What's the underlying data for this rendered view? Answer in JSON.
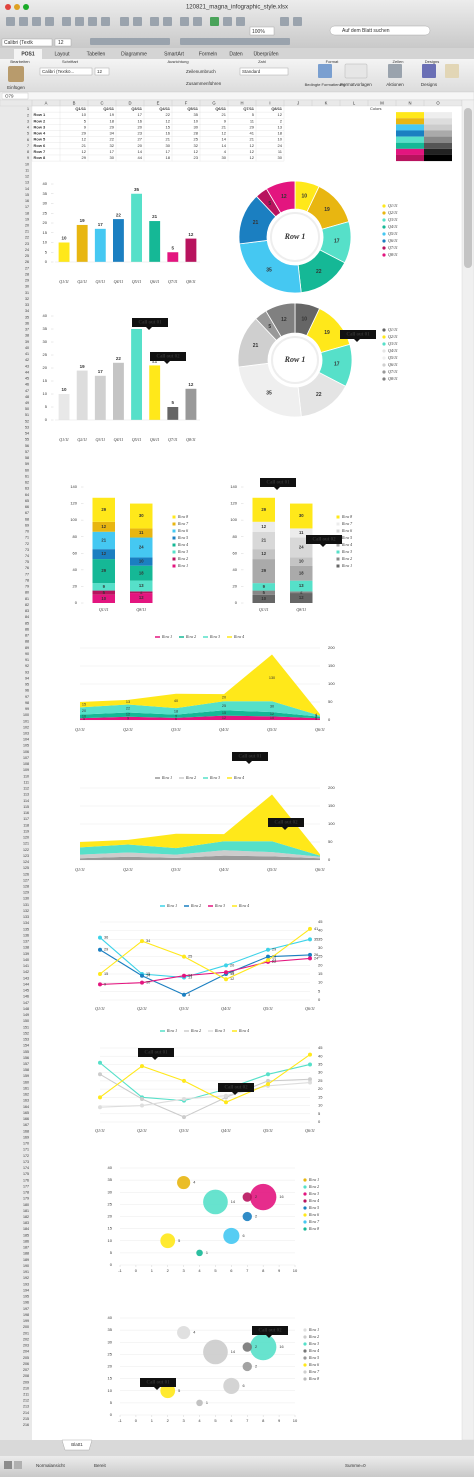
{
  "window": {
    "title": "120821_magna_infographic_style.xlsx",
    "search": "Auf dem Blatt suchen",
    "zoom": "100%",
    "font": "Calibri (Textk",
    "font_size": "12"
  },
  "ribbon": {
    "tabs": [
      "POS1",
      "Layout",
      "Tabellen",
      "Diagramme",
      "SmartArt",
      "Formeln",
      "Daten",
      "Überprüfen"
    ],
    "groups": [
      "Bearbeiten",
      "Schriftart",
      "Ausrichtung",
      "Zahl",
      "Format",
      "Zellen",
      "Designs"
    ],
    "paste": "Einfügen",
    "font": "Calibri (Textkö...",
    "font_size": "12",
    "wrap": "Zeilenumbruch",
    "merge": "Zusammenführen",
    "number_format": "Standard",
    "conditional": "Bedingte Formatierung",
    "styles": "Formatvorlagen",
    "cells": "Aktionen",
    "themes": "Designs"
  },
  "formula_bar": {
    "cell": "O79"
  },
  "sheet": {
    "columns": [
      "A",
      "B",
      "C",
      "D",
      "E",
      "F",
      "G",
      "H",
      "I",
      "J",
      "K",
      "L",
      "M",
      "N",
      "O"
    ],
    "rows": [
      1,
      2,
      3,
      4,
      5,
      6,
      7,
      8,
      9,
      10,
      11,
      12,
      13,
      14,
      15,
      16,
      17,
      18,
      19,
      20,
      21,
      22,
      23,
      24,
      25,
      26,
      27,
      28,
      29,
      30,
      31,
      32,
      33,
      34,
      35,
      36,
      37,
      38,
      39,
      40,
      41,
      42,
      43,
      44,
      45,
      46,
      47,
      48,
      49,
      50,
      51,
      52,
      53,
      54,
      55,
      56,
      57,
      58,
      59,
      60,
      61,
      62,
      63,
      64,
      65,
      66,
      67,
      68,
      69,
      70,
      71,
      72,
      73,
      74,
      75,
      76,
      77,
      78,
      79,
      80,
      81,
      82,
      83,
      84,
      85,
      86,
      87,
      88,
      89,
      90,
      91,
      92,
      93,
      94,
      95,
      96,
      97,
      98,
      99,
      100,
      101,
      102,
      103,
      104,
      105,
      106,
      107,
      108,
      109,
      110,
      111,
      112,
      113,
      114,
      115,
      116,
      117,
      118,
      119,
      120,
      121,
      122,
      123,
      124,
      125,
      126,
      127,
      128,
      129,
      130,
      131,
      132,
      133,
      134,
      135,
      136,
      137,
      138,
      139,
      140,
      141,
      142,
      143,
      144,
      145,
      146,
      147,
      148,
      149,
      150,
      151,
      152,
      153,
      154,
      155,
      156,
      157,
      158,
      159,
      160,
      161,
      162,
      163,
      164,
      165,
      166,
      167,
      168,
      169,
      170,
      171,
      172,
      173,
      174,
      175,
      176,
      177,
      178,
      179,
      180,
      181,
      182,
      183,
      184,
      185,
      186,
      187,
      188,
      189,
      190,
      191,
      192,
      193,
      194,
      195,
      196,
      197,
      198,
      199,
      200,
      201,
      202,
      203,
      204,
      205,
      206,
      207,
      208,
      209,
      210,
      211,
      212,
      213,
      214,
      215,
      216
    ],
    "header": [
      "Q1/11",
      "Q2/11",
      "Q3/11",
      "Q4/11",
      "Q5/11",
      "Q6/11",
      "Q7/11",
      "Q8/11"
    ],
    "data": [
      {
        "label": "Row 1",
        "values": [
          10,
          19,
          17,
          22,
          35,
          21,
          5,
          12
        ]
      },
      {
        "label": "Row 2",
        "values": [
          5,
          18,
          16,
          12,
          10,
          9,
          11,
          2
        ]
      },
      {
        "label": "Row 3",
        "values": [
          9,
          29,
          20,
          15,
          30,
          21,
          29,
          13
        ]
      },
      {
        "label": "Row 4",
        "values": [
          29,
          34,
          23,
          16,
          28,
          12,
          41,
          18
        ]
      },
      {
        "label": "Row 5",
        "values": [
          12,
          22,
          27,
          21,
          25,
          14,
          21,
          10
        ]
      },
      {
        "label": "Row 6",
        "values": [
          21,
          32,
          20,
          30,
          32,
          14,
          12,
          24
        ]
      },
      {
        "label": "Row 7",
        "values": [
          12,
          17,
          14,
          17,
          12,
          4,
          12,
          11
        ]
      },
      {
        "label": "Row 8",
        "values": [
          29,
          30,
          44,
          18,
          23,
          30,
          12,
          30
        ]
      }
    ],
    "colors_label": "Colors",
    "swatches": [
      [
        "#ffe81a",
        "#e8b611",
        "#45c8f2",
        "#1b7fc1",
        "#56e0c9",
        "#15b896",
        "#e3157f",
        "#b8135e"
      ],
      [
        "#eeeeee",
        "#dddddd",
        "#cccccc",
        "#aaaaaa",
        "#888888",
        "#555555",
        "#222222",
        "#000000"
      ]
    ]
  },
  "charts": [
    {
      "type": "bar",
      "categories": [
        "Q1/11",
        "Q2/11",
        "Q3/11",
        "Q4/11",
        "Q5/11",
        "Q6/11",
        "Q7/11",
        "Q8/11"
      ],
      "values": [
        10,
        19,
        17,
        22,
        35,
        21,
        5,
        12
      ],
      "colors": [
        "#ffe81a",
        "#e8b611",
        "#45c8f2",
        "#1b7fc1",
        "#56e0c9",
        "#15b896",
        "#e3157f",
        "#b8135e"
      ],
      "ylim": [
        0,
        40
      ],
      "yticks": [
        0,
        5,
        10,
        15,
        20,
        25,
        30,
        35,
        40
      ],
      "grid": false
    },
    {
      "type": "donut",
      "center_label": "Row 1",
      "categories": [
        "Q1/11",
        "Q2/11",
        "Q3/11",
        "Q4/11",
        "Q5/11",
        "Q6/11",
        "Q7/11",
        "Q8/11"
      ],
      "values": [
        10,
        19,
        17,
        22,
        35,
        21,
        5,
        12
      ],
      "colors": [
        "#ffe81a",
        "#e8b611",
        "#56e0c9",
        "#15b896",
        "#45c8f2",
        "#1b7fc1",
        "#b8135e",
        "#e3157f"
      ]
    },
    {
      "type": "bar",
      "categories": [
        "Q1/11",
        "Q2/11",
        "Q3/11",
        "Q4/11",
        "Q5/11",
        "Q6/11",
        "Q7/11",
        "Q8/11"
      ],
      "values": [
        10,
        19,
        17,
        22,
        35,
        21,
        5,
        12
      ],
      "colors": [
        "#e8e8e8",
        "#dddddd",
        "#d0d0d0",
        "#c4c4c4",
        "#56e0c9",
        "#ffe81a",
        "#666666",
        "#999999"
      ],
      "ylim": [
        0,
        40
      ],
      "yticks": [
        0,
        5,
        10,
        15,
        20,
        25,
        30,
        35,
        40
      ],
      "grid": false,
      "callouts": [
        "Call out 01",
        "Call out 02"
      ]
    },
    {
      "type": "donut",
      "center_label": "Row 1",
      "categories": [
        "Q1/11",
        "Q2/11",
        "Q3/11",
        "Q4/11",
        "Q5/11",
        "Q6/11",
        "Q7/11",
        "Q8/11"
      ],
      "values": [
        10,
        19,
        17,
        22,
        35,
        21,
        5,
        12
      ],
      "colors": [
        "#666666",
        "#ffe81a",
        "#56e0c9",
        "#e4e4e4",
        "#efefef",
        "#cfcfcf",
        "#999999",
        "#808080"
      ],
      "callouts": [
        "Call out 01"
      ]
    },
    {
      "type": "stacked",
      "categories": [
        "Q1/11",
        "Q8/11"
      ],
      "ylim": [
        0,
        140
      ],
      "yticks": [
        0,
        20,
        40,
        60,
        80,
        100,
        120,
        140
      ],
      "series": [
        {
          "name": "Row 1",
          "color": "#e3157f",
          "values": [
            10,
            12
          ]
        },
        {
          "name": "Row 2",
          "color": "#b8135e",
          "values": [
            5,
            2
          ]
        },
        {
          "name": "Row 3",
          "color": "#56e0c9",
          "values": [
            9,
            13
          ]
        },
        {
          "name": "Row 4",
          "color": "#15b896",
          "values": [
            29,
            18
          ]
        },
        {
          "name": "Row 5",
          "color": "#1b7fc1",
          "values": [
            12,
            10
          ]
        },
        {
          "name": "Row 6",
          "color": "#45c8f2",
          "values": [
            21,
            24
          ]
        },
        {
          "name": "Row 7",
          "color": "#e8b611",
          "values": [
            12,
            11
          ]
        },
        {
          "name": "Row 8",
          "color": "#ffe81a",
          "values": [
            29,
            30
          ]
        }
      ]
    },
    {
      "type": "stacked",
      "categories": [
        "Q1/11",
        "Q8/11"
      ],
      "ylim": [
        0,
        140
      ],
      "yticks": [
        0,
        20,
        40,
        60,
        80,
        100,
        120,
        140
      ],
      "callouts": [
        "Call out 01",
        "Call out 02"
      ],
      "series": [
        {
          "name": "Row 1",
          "color": "#666666",
          "values": [
            10,
            12
          ]
        },
        {
          "name": "Row 2",
          "color": "#888888",
          "values": [
            5,
            2
          ]
        },
        {
          "name": "Row 3",
          "color": "#56e0c9",
          "values": [
            9,
            13
          ]
        },
        {
          "name": "Row 4",
          "color": "#aaaaaa",
          "values": [
            29,
            18
          ]
        },
        {
          "name": "Row 5",
          "color": "#c4c4c4",
          "values": [
            12,
            10
          ]
        },
        {
          "name": "Row 6",
          "color": "#d8d8d8",
          "values": [
            21,
            24
          ]
        },
        {
          "name": "Row 7",
          "color": "#ececec",
          "values": [
            12,
            11
          ]
        },
        {
          "name": "Row 8",
          "color": "#ffe81a",
          "values": [
            29,
            30
          ]
        }
      ]
    },
    {
      "type": "area",
      "categories": [
        "Q1/11",
        "Q2/11",
        "Q3/11",
        "Q4/11",
        "Q5/11",
        "Q6/11"
      ],
      "ylim": [
        0,
        200
      ],
      "yticks": [
        0,
        50,
        100,
        150,
        200
      ],
      "labels": true,
      "series": [
        {
          "name": "Row 1",
          "color": "#e3157f",
          "values": [
            5,
            9,
            6,
            12,
            10,
            5
          ]
        },
        {
          "name": "Row 2",
          "color": "#15b896",
          "values": [
            10,
            12,
            9,
            15,
            12,
            4
          ]
        },
        {
          "name": "Row 3",
          "color": "#56e0c9",
          "values": [
            20,
            22,
            18,
            25,
            30,
            3
          ]
        },
        {
          "name": "Row 4",
          "color": "#ffe81a",
          "values": [
            15,
            13,
            40,
            20,
            130,
            4
          ]
        }
      ]
    },
    {
      "type": "area",
      "categories": [
        "Q1/11",
        "Q2/11",
        "Q3/11",
        "Q4/11",
        "Q5/11",
        "Q6/11"
      ],
      "ylim": [
        0,
        200
      ],
      "yticks": [
        0,
        50,
        100,
        150,
        200
      ],
      "labels": false,
      "callouts": [
        "Call out 01",
        "Call out 02"
      ],
      "series": [
        {
          "name": "Row 1",
          "color": "#999999",
          "values": [
            5,
            9,
            6,
            12,
            10,
            5
          ]
        },
        {
          "name": "Row 2",
          "color": "#cccccc",
          "values": [
            10,
            12,
            9,
            15,
            12,
            4
          ]
        },
        {
          "name": "Row 3",
          "color": "#56e0c9",
          "values": [
            20,
            22,
            18,
            25,
            30,
            3
          ]
        },
        {
          "name": "Row 4",
          "color": "#ffe81a",
          "values": [
            15,
            13,
            40,
            20,
            130,
            4
          ]
        }
      ]
    },
    {
      "type": "line",
      "categories": [
        "Q1/11",
        "Q2/11",
        "Q3/11",
        "Q4/11",
        "Q5/11",
        "Q6/11"
      ],
      "ylim": [
        0,
        45
      ],
      "yticks": [
        0,
        5,
        10,
        15,
        20,
        25,
        30,
        35,
        40,
        45
      ],
      "labels": true,
      "series": [
        {
          "name": "Row 1",
          "color": "#3cd2e8",
          "values": [
            36,
            15,
            13,
            20,
            29,
            35
          ]
        },
        {
          "name": "Row 2",
          "color": "#1b7fc1",
          "values": [
            29,
            14,
            3,
            15,
            25,
            26
          ]
        },
        {
          "name": "Row 3",
          "color": "#e3157f",
          "values": [
            9,
            10,
            14,
            16,
            22,
            24
          ]
        },
        {
          "name": "Row 4",
          "color": "#ffe81a",
          "values": [
            15,
            34,
            25,
            12,
            23,
            41
          ]
        }
      ]
    },
    {
      "type": "line",
      "categories": [
        "Q1/11",
        "Q2/11",
        "Q3/11",
        "Q4/11",
        "Q5/11",
        "Q6/11"
      ],
      "ylim": [
        0,
        45
      ],
      "yticks": [
        0,
        5,
        10,
        15,
        20,
        25,
        30,
        35,
        40,
        45
      ],
      "labels": false,
      "callouts": [
        "Call out 01",
        "Call out 02"
      ],
      "series": [
        {
          "name": "Row 1",
          "color": "#56e0c9",
          "values": [
            36,
            15,
            13,
            20,
            29,
            35
          ]
        },
        {
          "name": "Row 2",
          "color": "#cccccc",
          "values": [
            29,
            14,
            3,
            15,
            25,
            26
          ]
        },
        {
          "name": "Row 3",
          "color": "#dddddd",
          "values": [
            9,
            10,
            14,
            16,
            22,
            24
          ]
        },
        {
          "name": "Row 4",
          "color": "#ffe81a",
          "values": [
            15,
            34,
            25,
            12,
            23,
            41
          ]
        }
      ]
    },
    {
      "type": "bubble",
      "xlim": [
        -1,
        10
      ],
      "xticks": [
        -1,
        0,
        1,
        2,
        3,
        4,
        5,
        6,
        7,
        8,
        9,
        10
      ],
      "ylim": [
        0,
        40
      ],
      "yticks": [
        0,
        5,
        10,
        15,
        20,
        25,
        30,
        35,
        40
      ],
      "series": [
        {
          "name": "Row 1",
          "color": "#e8b611",
          "x": 3,
          "y": 34,
          "size": 4
        },
        {
          "name": "Row 2",
          "color": "#56e0c9",
          "x": 5,
          "y": 26,
          "size": 14
        },
        {
          "name": "Row 3",
          "color": "#e3157f",
          "x": 8,
          "y": 28,
          "size": 16
        },
        {
          "name": "Row 4",
          "color": "#b8135e",
          "x": 7,
          "y": 28,
          "size": 2
        },
        {
          "name": "Row 5",
          "color": "#1b7fc1",
          "x": 7,
          "y": 20,
          "size": 2
        },
        {
          "name": "Row 6",
          "color": "#ffe81a",
          "x": 2,
          "y": 10,
          "size": 5
        },
        {
          "name": "Row 7",
          "color": "#45c8f2",
          "x": 6,
          "y": 12,
          "size": 6
        },
        {
          "name": "Row 8",
          "color": "#15b896",
          "x": 4,
          "y": 5,
          "size": 1
        }
      ]
    },
    {
      "type": "bubble",
      "xlim": [
        -1,
        10
      ],
      "xticks": [
        -1,
        0,
        1,
        2,
        3,
        4,
        5,
        6,
        7,
        8,
        9,
        10
      ],
      "ylim": [
        0,
        40
      ],
      "yticks": [
        0,
        5,
        10,
        15,
        20,
        25,
        30,
        35,
        40
      ],
      "callouts": [
        "Call out 01",
        "Call out 02"
      ],
      "series": [
        {
          "name": "Row 1",
          "color": "#dddddd",
          "x": 3,
          "y": 34,
          "size": 4
        },
        {
          "name": "Row 2",
          "color": "#cccccc",
          "x": 5,
          "y": 26,
          "size": 14
        },
        {
          "name": "Row 3",
          "color": "#56e0c9",
          "x": 8,
          "y": 28,
          "size": 16
        },
        {
          "name": "Row 4",
          "color": "#777777",
          "x": 7,
          "y": 28,
          "size": 2
        },
        {
          "name": "Row 5",
          "color": "#999999",
          "x": 7,
          "y": 20,
          "size": 2
        },
        {
          "name": "Row 6",
          "color": "#ffe81a",
          "x": 2,
          "y": 10,
          "size": 5
        },
        {
          "name": "Row 7",
          "color": "#cfcfcf",
          "x": 6,
          "y": 12,
          "size": 6
        },
        {
          "name": "Row 8",
          "color": "#bbbbbb",
          "x": 4,
          "y": 5,
          "size": 1
        }
      ]
    }
  ],
  "status": {
    "sheet_tab": "Blatt1",
    "view": "Normalansicht",
    "state": "Bereit",
    "sum": "Summe=0"
  }
}
